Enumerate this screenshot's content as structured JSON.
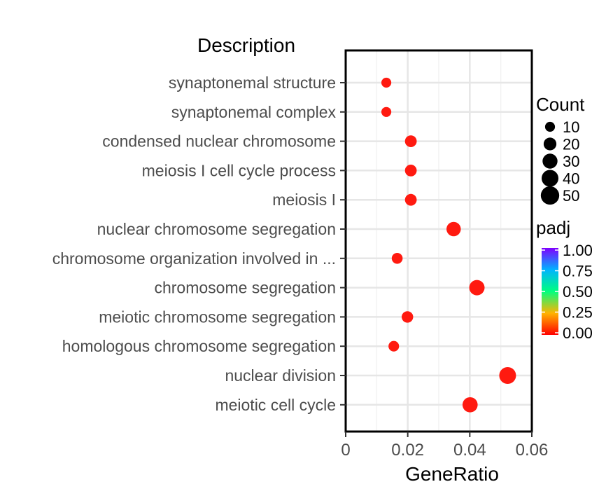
{
  "chart_data": {
    "type": "scatter",
    "ylabel": "Description",
    "xlabel": "GeneRatio",
    "xlim": [
      0,
      0.06
    ],
    "xticks": [
      0,
      0.02,
      0.04,
      0.06
    ],
    "xtick_labels": [
      "0",
      "0.02",
      "0.04",
      "0.06"
    ],
    "grid": true,
    "categories": [
      "synaptonemal structure",
      "synaptonemal complex",
      "condensed nuclear chromosome",
      "meiosis I cell cycle process",
      "meiosis I",
      "nuclear chromosome segregation",
      "chromosome organization involved in ...",
      "chromosome segregation",
      "meiotic chromosome segregation",
      "homologous chromosome segregation",
      "nuclear division",
      "meiotic cell cycle"
    ],
    "points": [
      {
        "category": "synaptonemal structure",
        "x": 0.0131,
        "count": 10,
        "padj": 0.0
      },
      {
        "category": "synaptonemal complex",
        "x": 0.0131,
        "count": 10,
        "padj": 0.0
      },
      {
        "category": "condensed nuclear chromosome",
        "x": 0.021,
        "count": 16,
        "padj": 0.0
      },
      {
        "category": "meiosis I cell cycle process",
        "x": 0.021,
        "count": 16,
        "padj": 0.0
      },
      {
        "category": "meiosis I",
        "x": 0.021,
        "count": 16,
        "padj": 0.0
      },
      {
        "category": "nuclear chromosome segregation",
        "x": 0.0348,
        "count": 27,
        "padj": 0.0
      },
      {
        "category": "chromosome organization involved in ...",
        "x": 0.0166,
        "count": 13,
        "padj": 0.0
      },
      {
        "category": "chromosome segregation",
        "x": 0.0423,
        "count": 32,
        "padj": 0.0
      },
      {
        "category": "meiotic chromosome segregation",
        "x": 0.0199,
        "count": 15,
        "padj": 0.0
      },
      {
        "category": "homologous chromosome segregation",
        "x": 0.0155,
        "count": 12,
        "padj": 0.0
      },
      {
        "category": "nuclear division",
        "x": 0.0522,
        "count": 40,
        "padj": 0.0
      },
      {
        "category": "meiotic cell cycle",
        "x": 0.0401,
        "count": 31,
        "padj": 0.0
      }
    ],
    "size_legend": {
      "title": "Count",
      "values": [
        10,
        20,
        30,
        40,
        50
      ],
      "labels": [
        "10",
        "20",
        "30",
        "40",
        "50"
      ]
    },
    "color_legend": {
      "title": "padj",
      "labels": [
        "1.00",
        "0.75",
        "0.50",
        "0.25",
        "0.00"
      ],
      "colors": [
        "#7f00ff",
        "#00b4ff",
        "#00ff7f",
        "#ffb400",
        "#ff0000"
      ]
    },
    "legend_position": "right",
    "point_color": "#ff1a10"
  }
}
